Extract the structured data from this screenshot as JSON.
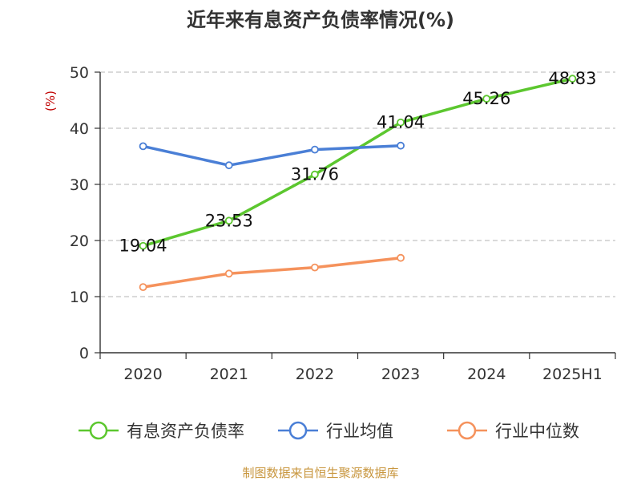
{
  "chart_data": {
    "type": "line",
    "title": "近年来有息资产负债率情况(%)",
    "unit_label": "(%)",
    "categories": [
      "2020",
      "2021",
      "2022",
      "2023",
      "2024",
      "2025H1"
    ],
    "ylim": [
      0,
      50
    ],
    "yticks": [
      0,
      10,
      20,
      30,
      40,
      50
    ],
    "grid": true,
    "legend_position": "bottom",
    "series": [
      {
        "name": "有息资产负债率",
        "color": "#5cc72f",
        "values": [
          19.04,
          23.53,
          31.76,
          41.04,
          45.26,
          48.83
        ],
        "labels": [
          "19.04",
          "23.53",
          "31.76",
          "41.04",
          "45.26",
          "48.83"
        ]
      },
      {
        "name": "行业均值",
        "color": "#4a7fd6",
        "values": [
          36.8,
          33.4,
          36.2,
          36.9,
          null,
          null
        ]
      },
      {
        "name": "行业中位数",
        "color": "#f5925c",
        "values": [
          11.7,
          14.1,
          15.2,
          16.9,
          null,
          null
        ]
      }
    ]
  },
  "footer": {
    "source": "制图数据来自恒生聚源数据库"
  }
}
